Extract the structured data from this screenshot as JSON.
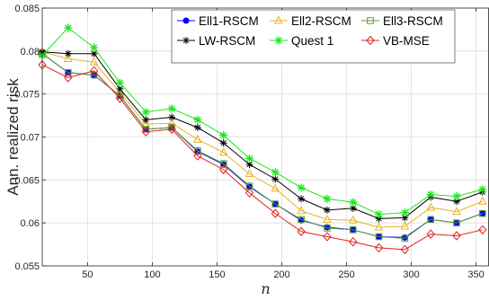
{
  "chart_data": {
    "type": "line",
    "title": "",
    "xlabel": "n",
    "ylabel": "Ann. realized risk",
    "xlim": [
      15,
      360
    ],
    "ylim": [
      0.055,
      0.085
    ],
    "xticks": [
      50,
      100,
      150,
      200,
      250,
      300,
      350
    ],
    "xtick_labels": [
      "50",
      "100",
      "150",
      "200",
      "250",
      "300",
      "350"
    ],
    "yticks": [
      0.055,
      0.06,
      0.065,
      0.07,
      0.075,
      0.08,
      0.085
    ],
    "ytick_labels": [
      "0.055",
      "0.06",
      "0.065",
      "0.07",
      "0.075",
      "0.08",
      "0.085"
    ],
    "grid": true,
    "legend_position": "top-right",
    "x": [
      15,
      35,
      55,
      75,
      95,
      115,
      135,
      155,
      175,
      195,
      215,
      235,
      255,
      275,
      295,
      315,
      335,
      355
    ],
    "series": [
      {
        "name": "Ell1-RSCM",
        "color": "#0000ff",
        "marker": "dot",
        "values": [
          0.0797,
          0.0775,
          0.0772,
          0.0748,
          0.0709,
          0.0711,
          0.0683,
          0.0668,
          0.0642,
          0.0622,
          0.0603,
          0.0595,
          0.0592,
          0.0584,
          0.0583,
          0.0604,
          0.06,
          0.0611
        ]
      },
      {
        "name": "Ell2-RSCM",
        "color": "#e6b422",
        "marker": "triangle",
        "values": [
          0.0799,
          0.0791,
          0.0787,
          0.0752,
          0.0715,
          0.0716,
          0.0697,
          0.0682,
          0.0657,
          0.064,
          0.0614,
          0.0604,
          0.0603,
          0.0595,
          0.0596,
          0.0618,
          0.0613,
          0.0625
        ]
      },
      {
        "name": "Ell3-RSCM",
        "color": "#5a9e2f",
        "marker": "square",
        "values": [
          0.0797,
          0.0775,
          0.0772,
          0.0748,
          0.0709,
          0.0711,
          0.0684,
          0.0669,
          0.0643,
          0.0622,
          0.0604,
          0.0594,
          0.0592,
          0.0584,
          0.0582,
          0.0604,
          0.06,
          0.0611
        ]
      },
      {
        "name": "LW-RSCM",
        "color": "#000000",
        "marker": "star",
        "values": [
          0.0799,
          0.0797,
          0.0797,
          0.0756,
          0.072,
          0.0723,
          0.0711,
          0.0693,
          0.0668,
          0.0651,
          0.0628,
          0.0615,
          0.0617,
          0.0605,
          0.0606,
          0.063,
          0.0625,
          0.0636
        ]
      },
      {
        "name": "Quest 1",
        "color": "#1ee61e",
        "marker": "asterisk",
        "values": [
          0.0795,
          0.0827,
          0.0804,
          0.0763,
          0.0729,
          0.0733,
          0.072,
          0.0702,
          0.0675,
          0.0659,
          0.0641,
          0.0628,
          0.0624,
          0.061,
          0.0612,
          0.0633,
          0.0631,
          0.0639
        ]
      },
      {
        "name": "VB-MSE",
        "color": "#e0201a",
        "marker": "diamond",
        "values": [
          0.0784,
          0.0769,
          0.0777,
          0.0745,
          0.0706,
          0.0709,
          0.0678,
          0.0662,
          0.0635,
          0.0611,
          0.059,
          0.0584,
          0.0578,
          0.0571,
          0.0569,
          0.0587,
          0.0585,
          0.0592
        ]
      }
    ]
  }
}
